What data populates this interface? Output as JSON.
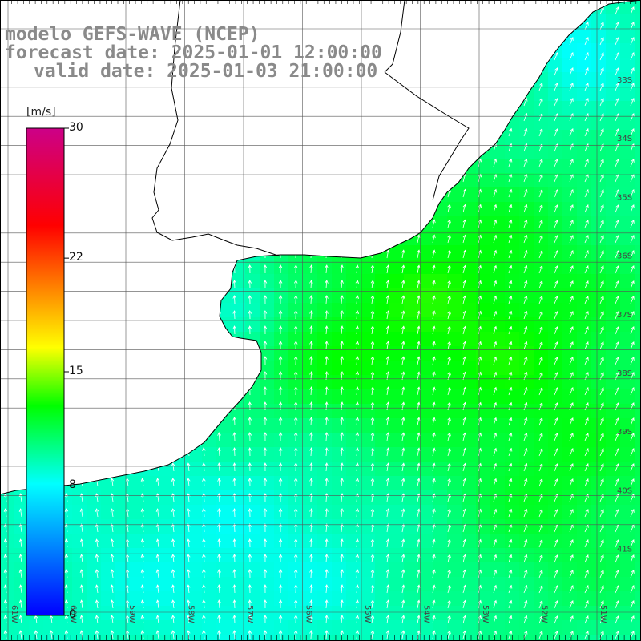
{
  "title": {
    "line1": "modelo GEFS-WAVE (NCEP)",
    "line2": "forecast date: 2025-01-01 12:00:00",
    "line3": "valid date: 2025-01-03 21:00:00"
  },
  "colorbar": {
    "unit": "[m/s]",
    "range": [
      0,
      30
    ],
    "ticks": [
      "30",
      "22",
      "15",
      "8",
      "0"
    ],
    "tick_values": [
      30,
      22,
      15,
      8,
      0
    ],
    "colors": [
      "#0000ff",
      "#00ffff",
      "#00ff00",
      "#ffff00",
      "#ff0000",
      "#cc0088"
    ]
  },
  "map": {
    "field": "wind speed",
    "lat_labels": [
      "33S",
      "34S",
      "35S",
      "36S",
      "37S",
      "38S",
      "39S",
      "40S",
      "41S"
    ],
    "lon_labels": [
      "61W",
      "60W",
      "59W",
      "58W",
      "57W",
      "56W",
      "55W",
      "54W",
      "53W",
      "52W",
      "51W"
    ],
    "land_color": "#ffffff",
    "grid_color": "#555555",
    "arrow_color": "#ffffff"
  }
}
